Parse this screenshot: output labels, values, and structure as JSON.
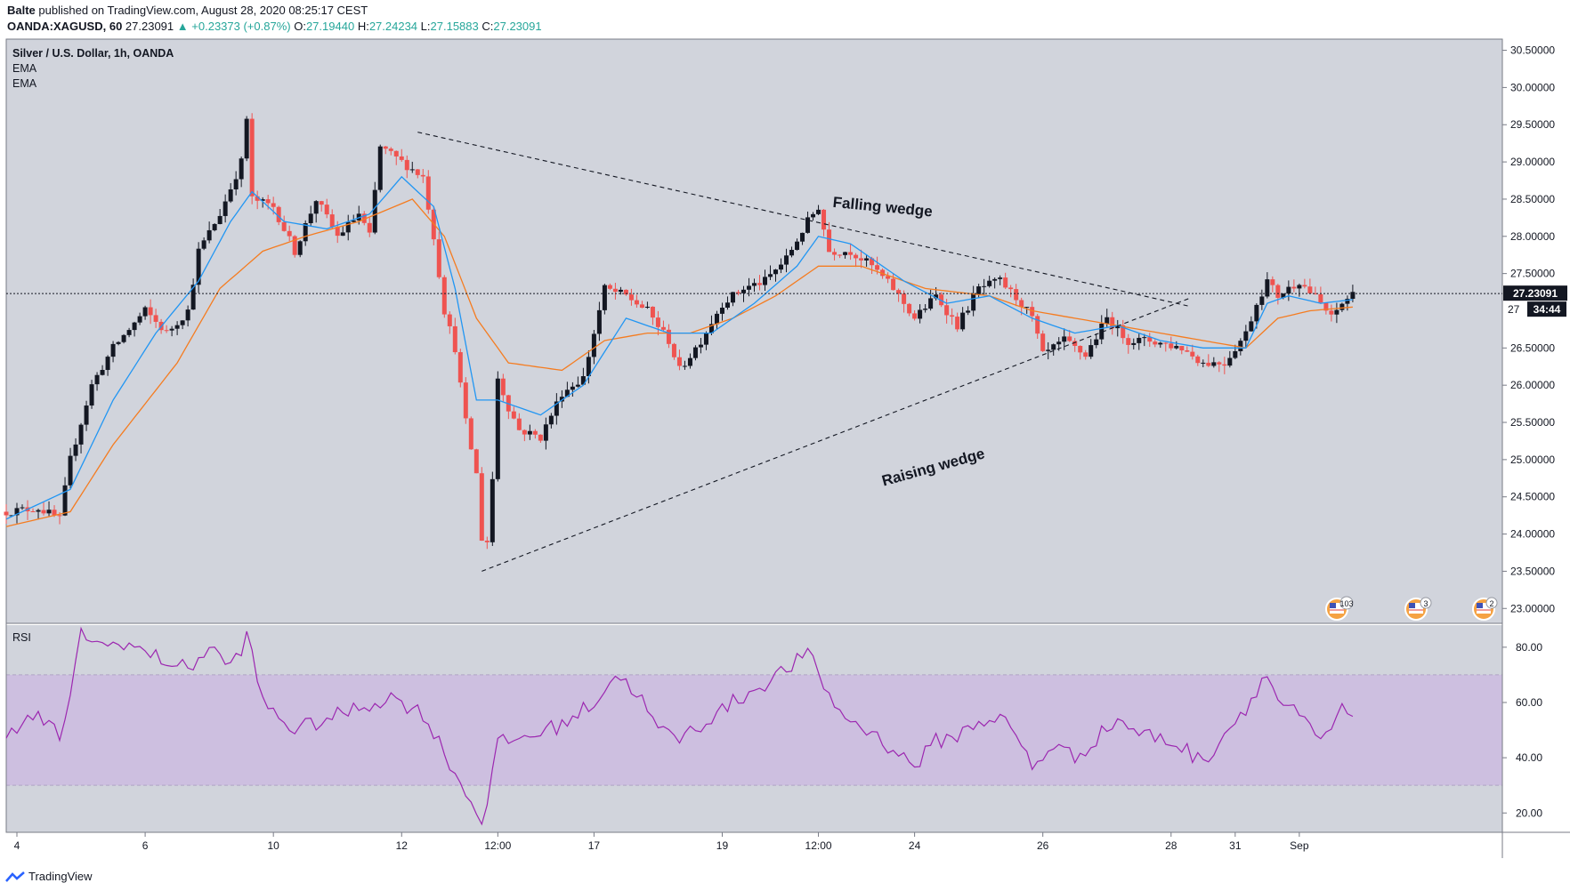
{
  "header": {
    "author": "Balte",
    "published": "published on TradingView.com, August 28, 2020 08:25:17 CEST",
    "symbol": "OANDA:XAGUSD, 60",
    "price": "27.23091",
    "arrow": "▲",
    "change": "+0.23373 (+0.87%)",
    "o_label": "O:",
    "o": "27.19440",
    "h_label": "H:",
    "h": "27.24234",
    "l_label": "L:",
    "l": "27.15883",
    "c_label": "C:",
    "c": "27.23091"
  },
  "legend": {
    "title": "Silver / U.S. Dollar, 1h, OANDA",
    "ema1": "EMA",
    "ema2": "EMA",
    "rsi": "RSI"
  },
  "annotations": {
    "falling": "Falling wedge",
    "rising": "Raising wedge"
  },
  "price_tag": "27.23091",
  "countdown": "34:44",
  "countdown_label_partial": "27",
  "events": [
    "103",
    "3",
    "2"
  ],
  "footer": {
    "brand": "TradingView"
  },
  "colors": {
    "up": "#131722",
    "down": "#ef5350",
    "ema_fast": "#2196f3",
    "ema_slow": "#f57c20",
    "rsi": "#9c27b0",
    "rsi_band": "#cdbfe0",
    "pane_bg": "#d1d4dc"
  },
  "chart_data": [
    {
      "type": "candlestick",
      "title": "Silver / U.S. Dollar, 1h, OANDA",
      "ylim": [
        22.8,
        30.65
      ],
      "y_ticks": [
        "30.50000",
        "30.00000",
        "29.50000",
        "29.00000",
        "28.50000",
        "28.00000",
        "27.50000",
        "27.00000",
        "26.50000",
        "26.00000",
        "25.50000",
        "25.00000",
        "24.50000",
        "24.00000",
        "23.50000",
        "23.00000"
      ],
      "x_ticks": [
        "4",
        "6",
        "10",
        "12",
        "12:00",
        "17",
        "19",
        "12:00",
        "24",
        "26",
        "28",
        "31",
        "Sep"
      ],
      "close_path": [
        [
          0,
          24.3
        ],
        [
          3,
          24.35
        ],
        [
          5,
          24.2
        ],
        [
          6,
          25.0
        ],
        [
          8,
          26.0
        ],
        [
          10,
          26.5
        ],
        [
          13,
          27.0
        ],
        [
          15,
          26.7
        ],
        [
          17,
          27.0
        ],
        [
          18,
          27.8
        ],
        [
          20,
          28.3
        ],
        [
          22,
          29.0
        ],
        [
          22.6,
          29.7
        ],
        [
          23,
          28.5
        ],
        [
          25,
          28.4
        ],
        [
          27,
          27.8
        ],
        [
          29,
          28.5
        ],
        [
          31,
          28.0
        ],
        [
          33,
          28.3
        ],
        [
          34,
          28.0
        ],
        [
          35,
          29.2
        ],
        [
          37,
          29.0
        ],
        [
          39,
          28.8
        ],
        [
          40,
          28.0
        ],
        [
          41,
          27.0
        ],
        [
          42,
          26.5
        ],
        [
          43,
          25.5
        ],
        [
          44,
          24.8
        ],
        [
          44.7,
          23.6
        ],
        [
          45.3,
          24.2
        ],
        [
          46,
          26.1
        ],
        [
          47,
          25.7
        ],
        [
          48,
          25.4
        ],
        [
          50,
          25.3
        ],
        [
          52,
          25.9
        ],
        [
          54,
          26.1
        ],
        [
          56,
          27.3
        ],
        [
          58,
          27.2
        ],
        [
          60,
          27.0
        ],
        [
          62,
          26.6
        ],
        [
          63,
          26.2
        ],
        [
          65,
          26.6
        ],
        [
          67,
          27.1
        ],
        [
          69,
          27.3
        ],
        [
          71,
          27.4
        ],
        [
          73,
          27.7
        ],
        [
          75,
          28.2
        ],
        [
          76,
          28.4
        ],
        [
          77,
          27.8
        ],
        [
          79,
          27.8
        ],
        [
          81,
          27.6
        ],
        [
          83,
          27.3
        ],
        [
          85,
          26.9
        ],
        [
          87,
          27.2
        ],
        [
          89,
          26.8
        ],
        [
          91,
          27.3
        ],
        [
          93,
          27.4
        ],
        [
          95,
          27.1
        ],
        [
          96,
          26.9
        ],
        [
          97,
          26.4
        ],
        [
          99,
          26.6
        ],
        [
          101,
          26.4
        ],
        [
          103,
          26.9
        ],
        [
          105,
          26.6
        ],
        [
          107,
          26.6
        ],
        [
          110,
          26.5
        ],
        [
          112,
          26.3
        ],
        [
          114,
          26.3
        ],
        [
          116,
          26.7
        ],
        [
          117,
          27.1
        ],
        [
          118,
          27.4
        ],
        [
          119,
          27.2
        ],
        [
          121,
          27.4
        ],
        [
          123,
          27.1
        ],
        [
          124,
          26.9
        ],
        [
          125,
          27.1
        ],
        [
          126,
          27.23
        ]
      ],
      "ema_fast_path": [
        [
          0,
          24.2
        ],
        [
          6,
          24.6
        ],
        [
          10,
          25.8
        ],
        [
          14,
          26.7
        ],
        [
          18,
          27.4
        ],
        [
          21,
          28.2
        ],
        [
          23,
          28.6
        ],
        [
          26,
          28.2
        ],
        [
          30,
          28.1
        ],
        [
          34,
          28.3
        ],
        [
          37,
          28.8
        ],
        [
          40,
          28.4
        ],
        [
          42,
          27.3
        ],
        [
          44,
          25.8
        ],
        [
          46,
          25.8
        ],
        [
          50,
          25.6
        ],
        [
          54,
          26.0
        ],
        [
          58,
          26.9
        ],
        [
          62,
          26.7
        ],
        [
          66,
          26.7
        ],
        [
          70,
          27.1
        ],
        [
          74,
          27.6
        ],
        [
          76,
          28.0
        ],
        [
          79,
          27.9
        ],
        [
          84,
          27.4
        ],
        [
          88,
          27.1
        ],
        [
          92,
          27.2
        ],
        [
          96,
          26.9
        ],
        [
          100,
          26.7
        ],
        [
          104,
          26.8
        ],
        [
          108,
          26.6
        ],
        [
          112,
          26.5
        ],
        [
          116,
          26.5
        ],
        [
          118,
          27.1
        ],
        [
          120,
          27.2
        ],
        [
          123,
          27.1
        ],
        [
          126,
          27.15
        ]
      ],
      "ema_slow_path": [
        [
          0,
          24.1
        ],
        [
          6,
          24.3
        ],
        [
          10,
          25.2
        ],
        [
          16,
          26.3
        ],
        [
          20,
          27.3
        ],
        [
          24,
          27.8
        ],
        [
          28,
          28.0
        ],
        [
          33,
          28.2
        ],
        [
          38,
          28.5
        ],
        [
          41,
          28.0
        ],
        [
          44,
          26.9
        ],
        [
          47,
          26.3
        ],
        [
          52,
          26.2
        ],
        [
          56,
          26.6
        ],
        [
          60,
          26.7
        ],
        [
          64,
          26.7
        ],
        [
          68,
          26.9
        ],
        [
          72,
          27.2
        ],
        [
          76,
          27.6
        ],
        [
          80,
          27.6
        ],
        [
          86,
          27.3
        ],
        [
          92,
          27.2
        ],
        [
          96,
          27.0
        ],
        [
          100,
          26.9
        ],
        [
          104,
          26.8
        ],
        [
          108,
          26.7
        ],
        [
          112,
          26.6
        ],
        [
          116,
          26.5
        ],
        [
          119,
          26.9
        ],
        [
          122,
          27.0
        ],
        [
          126,
          27.05
        ]
      ],
      "trendlines": [
        {
          "name": "Falling wedge",
          "from": [
            38.5,
            29.4
          ],
          "to": [
            109.5,
            27.1
          ]
        },
        {
          "name": "Raising wedge",
          "from": [
            44.5,
            23.5
          ],
          "to": [
            109.5,
            27.1
          ]
        }
      ],
      "last_price": 27.23091
    },
    {
      "type": "line",
      "title": "RSI",
      "ylim": [
        13,
        88
      ],
      "y_ticks": [
        "80.00",
        "60.00",
        "40.00",
        "20.00"
      ],
      "band": [
        30,
        70
      ],
      "values_path": [
        [
          0,
          50
        ],
        [
          3,
          55
        ],
        [
          5,
          48
        ],
        [
          6,
          60
        ],
        [
          7,
          86
        ],
        [
          9,
          80
        ],
        [
          11,
          82
        ],
        [
          13,
          78
        ],
        [
          15,
          75
        ],
        [
          17,
          72
        ],
        [
          19,
          80
        ],
        [
          21,
          73
        ],
        [
          22.6,
          84
        ],
        [
          24,
          60
        ],
        [
          27,
          50
        ],
        [
          30,
          54
        ],
        [
          33,
          58
        ],
        [
          36,
          62
        ],
        [
          39,
          56
        ],
        [
          41,
          42
        ],
        [
          43,
          27
        ],
        [
          44.7,
          17
        ],
        [
          46,
          45
        ],
        [
          49,
          48
        ],
        [
          52,
          52
        ],
        [
          55,
          60
        ],
        [
          57,
          70
        ],
        [
          59,
          64
        ],
        [
          61,
          50
        ],
        [
          63,
          47
        ],
        [
          65,
          52
        ],
        [
          68,
          60
        ],
        [
          71,
          67
        ],
        [
          73,
          72
        ],
        [
          75,
          78
        ],
        [
          76,
          70
        ],
        [
          78,
          56
        ],
        [
          81,
          49
        ],
        [
          83,
          43
        ],
        [
          85,
          37
        ],
        [
          87,
          46
        ],
        [
          89,
          48
        ],
        [
          91,
          53
        ],
        [
          93,
          55
        ],
        [
          95,
          45
        ],
        [
          96,
          36
        ],
        [
          98,
          45
        ],
        [
          100,
          40
        ],
        [
          102,
          47
        ],
        [
          104,
          54
        ],
        [
          106,
          49
        ],
        [
          108,
          47
        ],
        [
          110,
          44
        ],
        [
          112,
          38
        ],
        [
          114,
          49
        ],
        [
          116,
          58
        ],
        [
          117,
          65
        ],
        [
          118,
          70
        ],
        [
          119,
          61
        ],
        [
          121,
          55
        ],
        [
          123,
          45
        ],
        [
          125,
          57
        ],
        [
          126,
          55
        ]
      ]
    }
  ]
}
